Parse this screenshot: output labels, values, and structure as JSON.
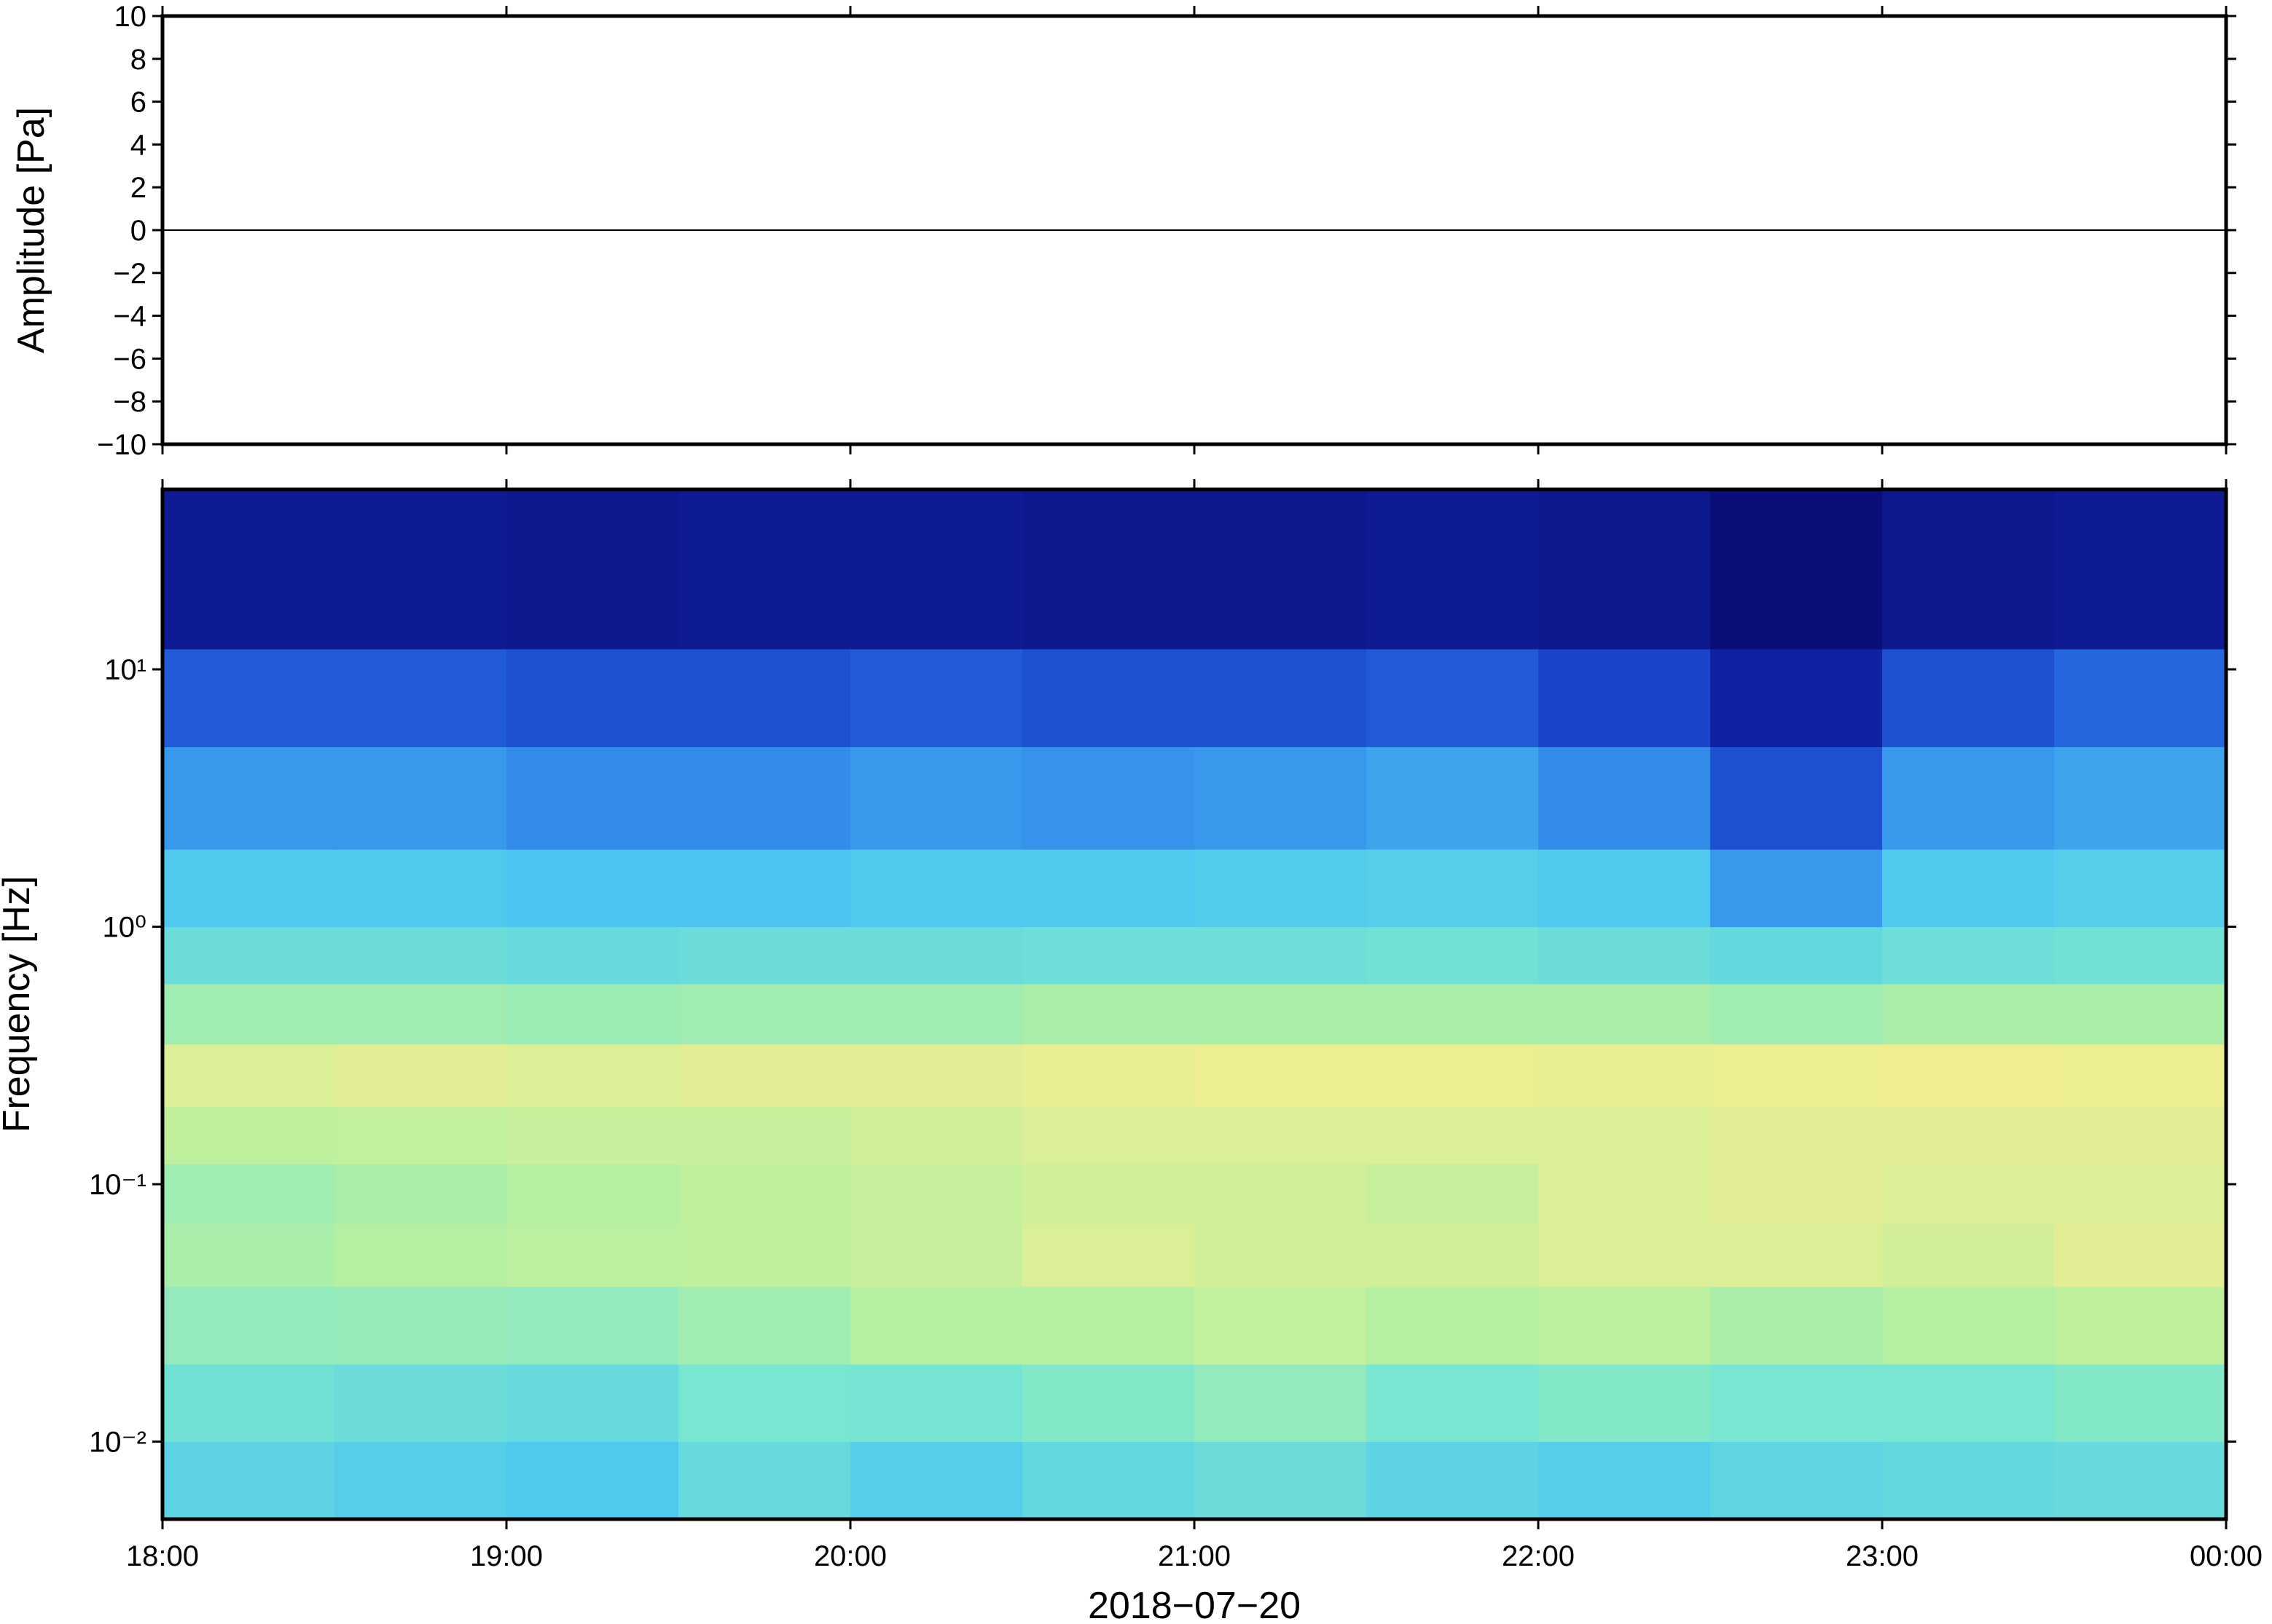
{
  "chart_data": [
    {
      "type": "line",
      "ylabel": "Amplitude [Pa]",
      "x": [
        18,
        18.5,
        19,
        19.5,
        20,
        20.5,
        21,
        21.5,
        22,
        22.5,
        23,
        23.5,
        24
      ],
      "values": [
        0,
        0,
        0,
        0,
        0,
        0,
        0,
        0,
        0,
        0,
        0,
        0,
        0
      ],
      "color": "#000000",
      "xlim": [
        18,
        24
      ],
      "ylim": [
        -10,
        10
      ],
      "yticks": [
        {
          "value": -10,
          "label": "−10"
        },
        {
          "value": -8,
          "label": "−8"
        },
        {
          "value": -6,
          "label": "−6"
        },
        {
          "value": -4,
          "label": "−4"
        },
        {
          "value": -2,
          "label": "−2"
        },
        0,
        2,
        4,
        6,
        8,
        10
      ]
    },
    {
      "type": "heatmap",
      "ylabel": "Frequency [Hz]",
      "xlabel": "2018−07−20",
      "x_edges": [
        18,
        18.5,
        19,
        19.5,
        20,
        20.5,
        21,
        21.5,
        22,
        22.5,
        23,
        23.5,
        24
      ],
      "y_edges": [
        0.005,
        0.01,
        0.02,
        0.04,
        0.07,
        0.12,
        0.2,
        0.35,
        0.6,
        1,
        2,
        5,
        12,
        50
      ],
      "values": [
        [
          0.42,
          0.4,
          0.38,
          0.45,
          0.4,
          0.44,
          0.46,
          0.42,
          0.4,
          0.43,
          0.44,
          0.45
        ],
        [
          0.48,
          0.46,
          0.45,
          0.5,
          0.49,
          0.52,
          0.55,
          0.5,
          0.52,
          0.5,
          0.5,
          0.52
        ],
        [
          0.55,
          0.56,
          0.55,
          0.58,
          0.62,
          0.62,
          0.65,
          0.62,
          0.63,
          0.6,
          0.62,
          0.64
        ],
        [
          0.6,
          0.62,
          0.63,
          0.64,
          0.66,
          0.7,
          0.68,
          0.68,
          0.7,
          0.7,
          0.68,
          0.72
        ],
        [
          0.58,
          0.6,
          0.62,
          0.64,
          0.66,
          0.68,
          0.68,
          0.66,
          0.7,
          0.72,
          0.7,
          0.7
        ],
        [
          0.64,
          0.65,
          0.66,
          0.66,
          0.68,
          0.7,
          0.7,
          0.7,
          0.7,
          0.72,
          0.72,
          0.72
        ],
        [
          0.7,
          0.72,
          0.7,
          0.72,
          0.72,
          0.73,
          0.74,
          0.74,
          0.73,
          0.74,
          0.75,
          0.74
        ],
        [
          0.58,
          0.58,
          0.57,
          0.58,
          0.58,
          0.6,
          0.6,
          0.6,
          0.6,
          0.58,
          0.6,
          0.6
        ],
        [
          0.46,
          0.46,
          0.45,
          0.46,
          0.46,
          0.47,
          0.47,
          0.48,
          0.46,
          0.44,
          0.47,
          0.48
        ],
        [
          0.38,
          0.38,
          0.37,
          0.37,
          0.38,
          0.38,
          0.39,
          0.4,
          0.38,
          0.3,
          0.38,
          0.4
        ],
        [
          0.3,
          0.3,
          0.28,
          0.28,
          0.3,
          0.29,
          0.3,
          0.32,
          0.28,
          0.18,
          0.3,
          0.32
        ],
        [
          0.2,
          0.2,
          0.18,
          0.18,
          0.2,
          0.18,
          0.18,
          0.2,
          0.16,
          0.08,
          0.18,
          0.22
        ],
        [
          0.06,
          0.06,
          0.05,
          0.06,
          0.06,
          0.05,
          0.05,
          0.06,
          0.05,
          0.02,
          0.05,
          0.06
        ]
      ],
      "zlim": [
        0,
        1
      ],
      "colormap": [
        "#08086a",
        "#1530c0",
        "#2a78e8",
        "#4ec8f0",
        "#78e6d0",
        "#b8f0a0",
        "#f0ee90",
        "#f8b870",
        "#e85a40"
      ],
      "xlim": [
        18,
        24
      ],
      "xticks": [
        {
          "value": 18,
          "label": "18:00"
        },
        {
          "value": 19,
          "label": "19:00"
        },
        {
          "value": 20,
          "label": "20:00"
        },
        {
          "value": 21,
          "label": "21:00"
        },
        {
          "value": 22,
          "label": "22:00"
        },
        {
          "value": 23,
          "label": "23:00"
        },
        {
          "value": 24,
          "label": "00:00"
        }
      ],
      "ylim": [
        0.005,
        50
      ],
      "ylog": true,
      "yticks": [
        {
          "value": 0.01,
          "label": "10⁻²"
        },
        {
          "value": 0.1,
          "label": "10⁻¹"
        },
        {
          "value": 1,
          "label": "10⁰"
        },
        {
          "value": 10,
          "label": "10¹"
        }
      ]
    }
  ]
}
